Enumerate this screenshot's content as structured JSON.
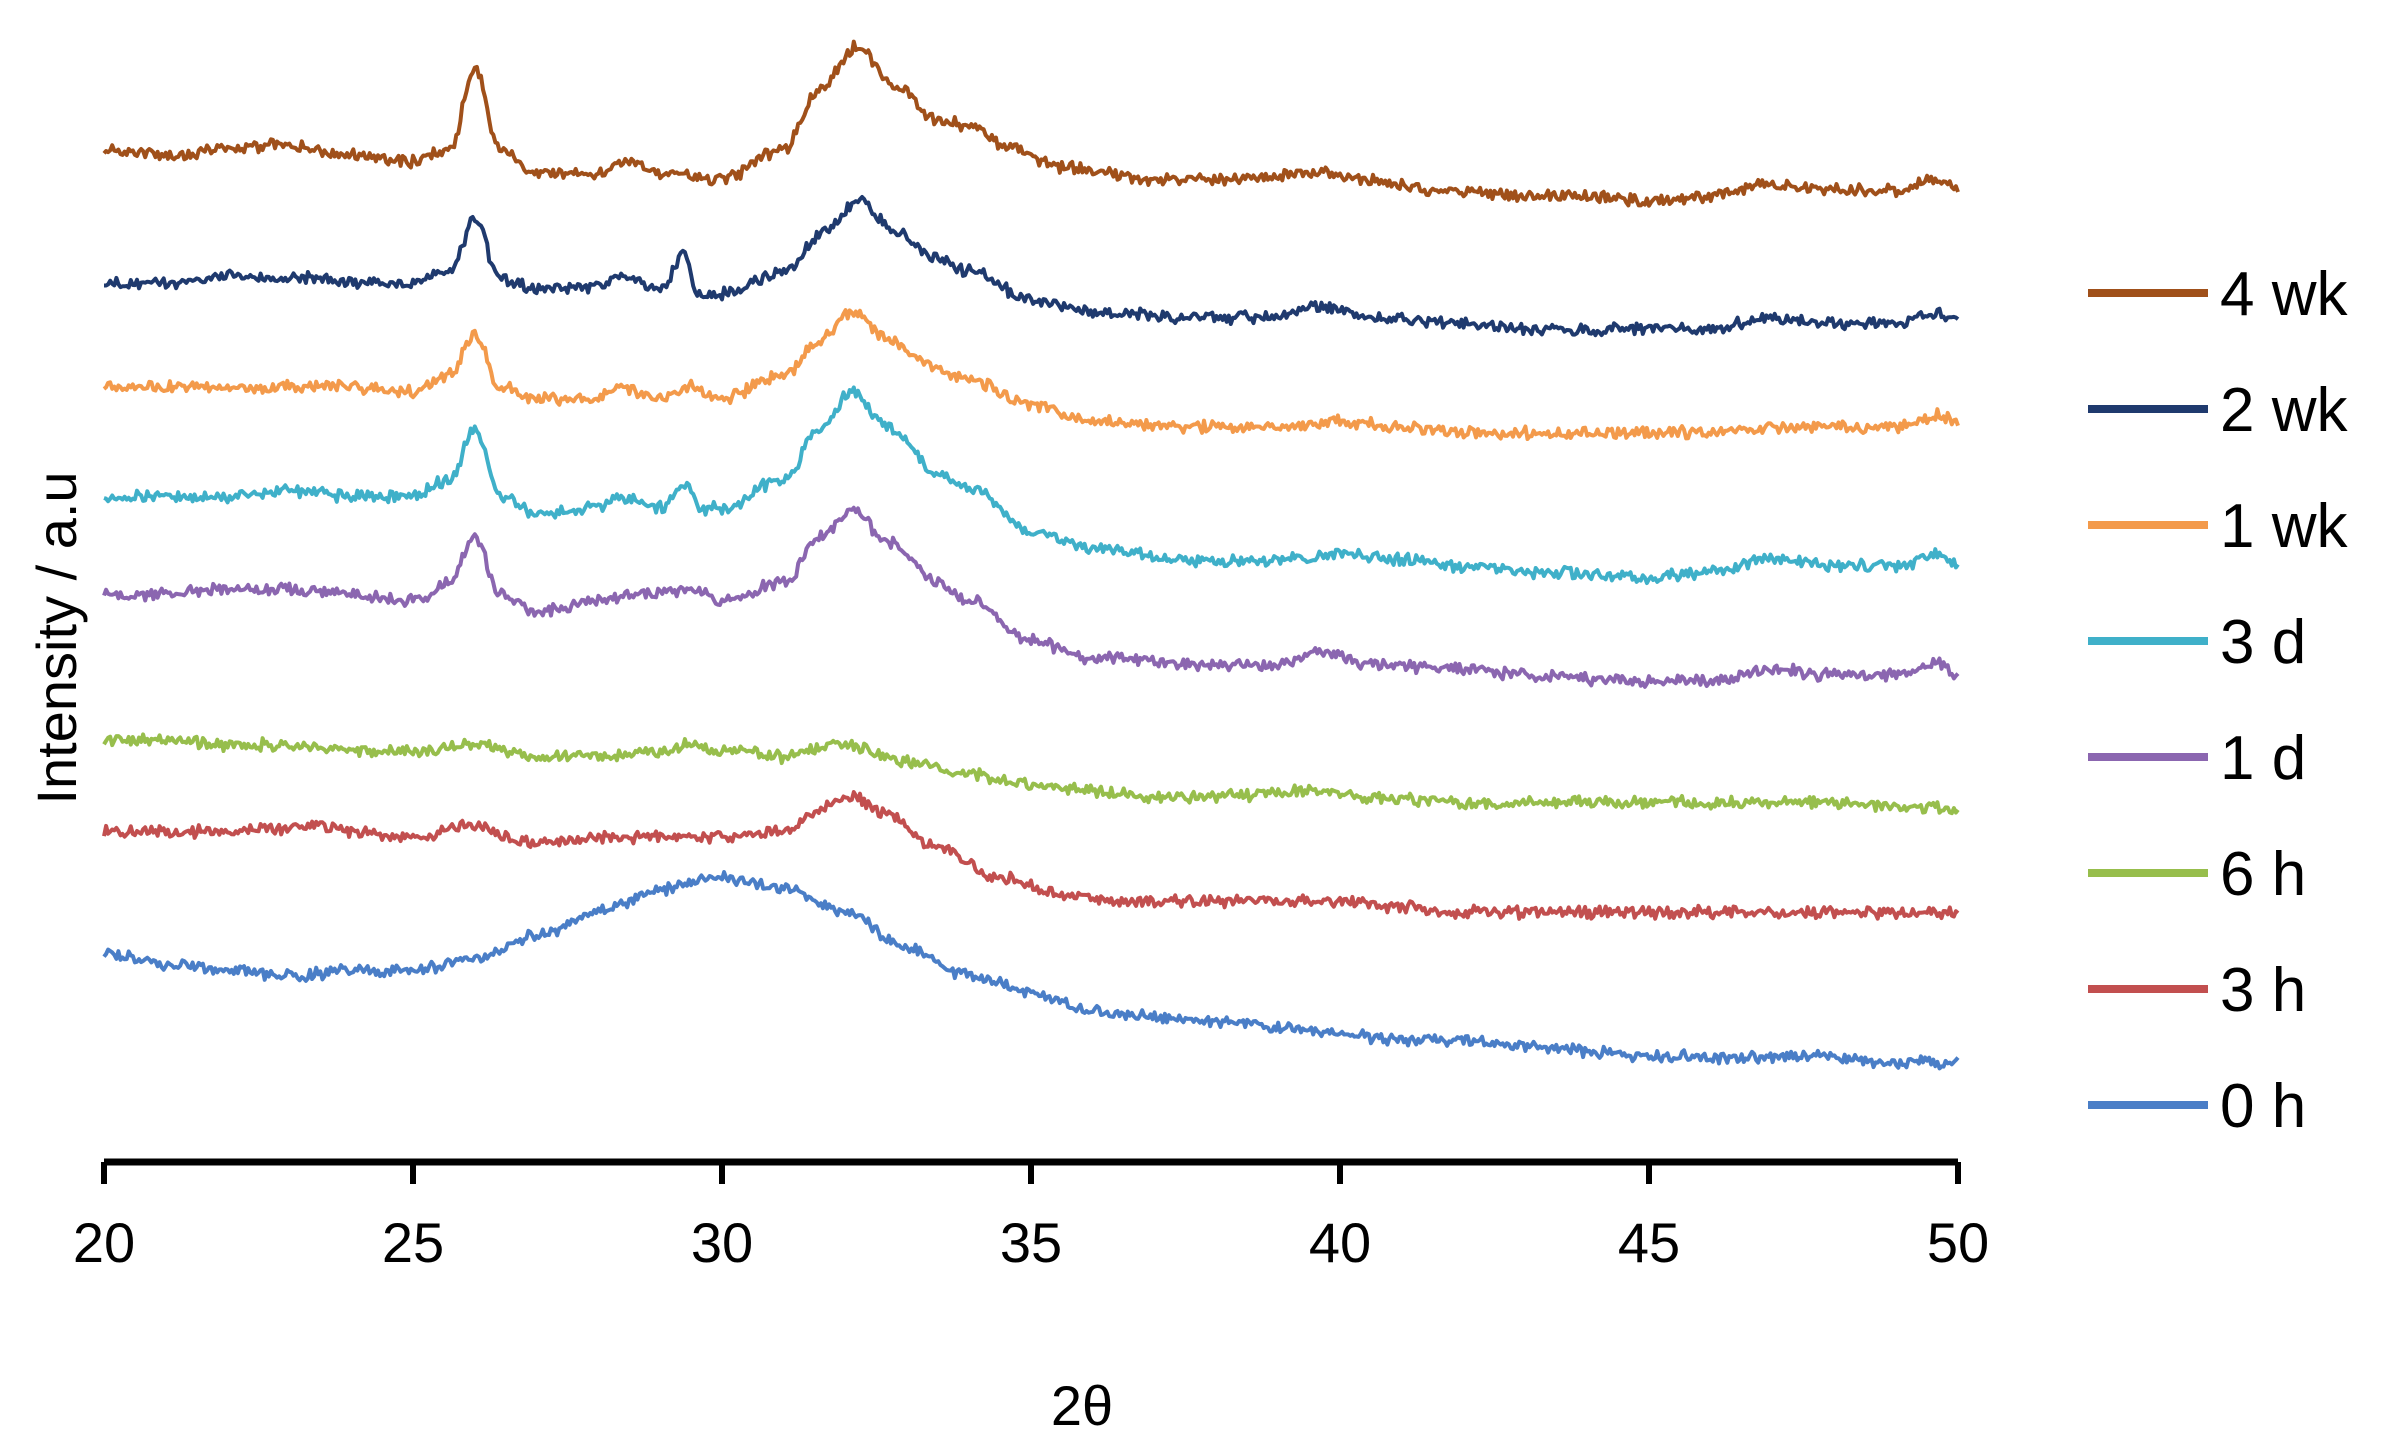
{
  "chart_data": {
    "type": "line",
    "title": "",
    "xlabel": "2θ",
    "ylabel": "Intensity / a.u",
    "xlim": [
      20,
      50
    ],
    "x_ticks": [
      20,
      25,
      30,
      35,
      40,
      45,
      50
    ],
    "y_ticks_shown": false,
    "grid": false,
    "legend_position": "right",
    "stacked_offset": true,
    "series": [
      {
        "name": "4 wk",
        "color": "#A0501A",
        "points": [
          [
            20,
            0.81
          ],
          [
            21,
            0.8
          ],
          [
            22,
            0.81
          ],
          [
            23,
            0.82
          ],
          [
            24,
            0.8
          ],
          [
            25,
            0.79
          ],
          [
            25.6,
            0.81
          ],
          [
            26.0,
            0.95
          ],
          [
            26.4,
            0.81
          ],
          [
            27,
            0.77
          ],
          [
            28,
            0.77
          ],
          [
            28.4,
            0.79
          ],
          [
            29,
            0.77
          ],
          [
            30,
            0.76
          ],
          [
            31,
            0.81
          ],
          [
            31.6,
            0.92
          ],
          [
            32.2,
            0.99
          ],
          [
            32.8,
            0.92
          ],
          [
            33.5,
            0.86
          ],
          [
            34.1,
            0.85
          ],
          [
            34.5,
            0.82
          ],
          [
            35.5,
            0.78
          ],
          [
            37,
            0.76
          ],
          [
            38.5,
            0.76
          ],
          [
            39.5,
            0.77
          ],
          [
            40.5,
            0.76
          ],
          [
            41.5,
            0.74
          ],
          [
            43,
            0.73
          ],
          [
            44,
            0.73
          ],
          [
            45,
            0.72
          ],
          [
            46,
            0.73
          ],
          [
            47,
            0.75
          ],
          [
            48,
            0.74
          ],
          [
            49,
            0.74
          ],
          [
            49.6,
            0.76
          ],
          [
            50,
            0.74
          ]
        ]
      },
      {
        "name": "2 wk",
        "color": "#1F3A6E",
        "points": [
          [
            20,
            0.58
          ],
          [
            21,
            0.58
          ],
          [
            22,
            0.59
          ],
          [
            23,
            0.59
          ],
          [
            24,
            0.58
          ],
          [
            25,
            0.58
          ],
          [
            25.6,
            0.6
          ],
          [
            26.0,
            0.69
          ],
          [
            26.4,
            0.59
          ],
          [
            27,
            0.57
          ],
          [
            28,
            0.57
          ],
          [
            28.3,
            0.59
          ],
          [
            29,
            0.57
          ],
          [
            29.4,
            0.63
          ],
          [
            29.6,
            0.56
          ],
          [
            30,
            0.56
          ],
          [
            31,
            0.6
          ],
          [
            31.7,
            0.67
          ],
          [
            32.2,
            0.72
          ],
          [
            32.8,
            0.67
          ],
          [
            33.5,
            0.62
          ],
          [
            34,
            0.6
          ],
          [
            35,
            0.55
          ],
          [
            36,
            0.53
          ],
          [
            37.5,
            0.52
          ],
          [
            39,
            0.52
          ],
          [
            39.6,
            0.54
          ],
          [
            40.5,
            0.52
          ],
          [
            42,
            0.51
          ],
          [
            43,
            0.5
          ],
          [
            45,
            0.5
          ],
          [
            46,
            0.5
          ],
          [
            47,
            0.52
          ],
          [
            48,
            0.51
          ],
          [
            49,
            0.51
          ],
          [
            49.7,
            0.53
          ],
          [
            50,
            0.51
          ]
        ]
      },
      {
        "name": "1 wk",
        "color": "#F39A4B",
        "points": [
          [
            20,
            0.4
          ],
          [
            21,
            0.4
          ],
          [
            22,
            0.4
          ],
          [
            23,
            0.4
          ],
          [
            24,
            0.4
          ],
          [
            25,
            0.39
          ],
          [
            25.6,
            0.42
          ],
          [
            26.0,
            0.49
          ],
          [
            26.4,
            0.4
          ],
          [
            27,
            0.38
          ],
          [
            28,
            0.38
          ],
          [
            28.3,
            0.4
          ],
          [
            29,
            0.38
          ],
          [
            29.5,
            0.4
          ],
          [
            30,
            0.38
          ],
          [
            31,
            0.42
          ],
          [
            31.6,
            0.48
          ],
          [
            32.1,
            0.53
          ],
          [
            32.7,
            0.48
          ],
          [
            33.5,
            0.43
          ],
          [
            34.0,
            0.41
          ],
          [
            35,
            0.37
          ],
          [
            36,
            0.34
          ],
          [
            37.5,
            0.33
          ],
          [
            39,
            0.33
          ],
          [
            40,
            0.34
          ],
          [
            41,
            0.33
          ],
          [
            42,
            0.32
          ],
          [
            43,
            0.32
          ],
          [
            45,
            0.32
          ],
          [
            46,
            0.32
          ],
          [
            47,
            0.33
          ],
          [
            48,
            0.33
          ],
          [
            49,
            0.33
          ],
          [
            49.7,
            0.35
          ],
          [
            50,
            0.34
          ]
        ]
      },
      {
        "name": "3 d",
        "color": "#3FB0C9",
        "points": [
          [
            20,
            0.21
          ],
          [
            21,
            0.21
          ],
          [
            22,
            0.21
          ],
          [
            23,
            0.22
          ],
          [
            24,
            0.21
          ],
          [
            25,
            0.21
          ],
          [
            25.6,
            0.24
          ],
          [
            26.0,
            0.33
          ],
          [
            26.4,
            0.21
          ],
          [
            27,
            0.18
          ],
          [
            28,
            0.19
          ],
          [
            28.3,
            0.21
          ],
          [
            29,
            0.19
          ],
          [
            29.4,
            0.23
          ],
          [
            29.7,
            0.19
          ],
          [
            30,
            0.19
          ],
          [
            31,
            0.24
          ],
          [
            31.6,
            0.33
          ],
          [
            32.1,
            0.39
          ],
          [
            32.7,
            0.33
          ],
          [
            33.5,
            0.25
          ],
          [
            34.1,
            0.22
          ],
          [
            35,
            0.15
          ],
          [
            36,
            0.12
          ],
          [
            37.5,
            0.1
          ],
          [
            39,
            0.1
          ],
          [
            40,
            0.11
          ],
          [
            41,
            0.1
          ],
          [
            42,
            0.09
          ],
          [
            43,
            0.08
          ],
          [
            45,
            0.07
          ],
          [
            46,
            0.08
          ],
          [
            47,
            0.1
          ],
          [
            48,
            0.09
          ],
          [
            49,
            0.09
          ],
          [
            49.7,
            0.11
          ],
          [
            50,
            0.09
          ]
        ]
      },
      {
        "name": "1 d",
        "color": "#8B66B0",
        "points": [
          [
            20,
            0.04
          ],
          [
            21,
            0.04
          ],
          [
            22,
            0.05
          ],
          [
            23,
            0.05
          ],
          [
            24,
            0.04
          ],
          [
            25,
            0.03
          ],
          [
            25.6,
            0.06
          ],
          [
            26.0,
            0.14
          ],
          [
            26.4,
            0.04
          ],
          [
            27,
            0.01
          ],
          [
            28,
            0.03
          ],
          [
            28.5,
            0.04
          ],
          [
            29,
            0.04
          ],
          [
            29.5,
            0.05
          ],
          [
            30,
            0.03
          ],
          [
            31,
            0.06
          ],
          [
            31.6,
            0.14
          ],
          [
            32.1,
            0.19
          ],
          [
            32.7,
            0.13
          ],
          [
            33.5,
            0.06
          ],
          [
            34.0,
            0.03
          ],
          [
            35,
            -0.04
          ],
          [
            36,
            -0.07
          ],
          [
            37.5,
            -0.08
          ],
          [
            39,
            -0.08
          ],
          [
            39.8,
            -0.06
          ],
          [
            40.5,
            -0.08
          ],
          [
            42,
            -0.09
          ],
          [
            43,
            -0.1
          ],
          [
            45,
            -0.11
          ],
          [
            46,
            -0.11
          ],
          [
            47,
            -0.09
          ],
          [
            48,
            -0.1
          ],
          [
            49,
            -0.1
          ],
          [
            49.7,
            -0.08
          ],
          [
            50,
            -0.1
          ]
        ]
      },
      {
        "name": "6 h",
        "color": "#97BE4C",
        "points": [
          [
            20,
            -0.21
          ],
          [
            21,
            -0.21
          ],
          [
            22,
            -0.22
          ],
          [
            23,
            -0.22
          ],
          [
            24,
            -0.23
          ],
          [
            25,
            -0.23
          ],
          [
            26,
            -0.22
          ],
          [
            27,
            -0.24
          ],
          [
            28,
            -0.24
          ],
          [
            29,
            -0.23
          ],
          [
            29.5,
            -0.22
          ],
          [
            30,
            -0.23
          ],
          [
            31,
            -0.24
          ],
          [
            32,
            -0.22
          ],
          [
            33,
            -0.25
          ],
          [
            34,
            -0.27
          ],
          [
            35,
            -0.29
          ],
          [
            36,
            -0.3
          ],
          [
            37,
            -0.31
          ],
          [
            38,
            -0.31
          ],
          [
            39.5,
            -0.3
          ],
          [
            40.5,
            -0.31
          ],
          [
            42,
            -0.32
          ],
          [
            44,
            -0.32
          ],
          [
            46,
            -0.32
          ],
          [
            48,
            -0.32
          ],
          [
            50,
            -0.33
          ]
        ]
      },
      {
        "name": "3 h",
        "color": "#C24F4F",
        "points": [
          [
            20,
            -0.37
          ],
          [
            21,
            -0.37
          ],
          [
            22,
            -0.37
          ],
          [
            23.5,
            -0.36
          ],
          [
            24,
            -0.37
          ],
          [
            25,
            -0.38
          ],
          [
            26.0,
            -0.36
          ],
          [
            26.5,
            -0.38
          ],
          [
            27,
            -0.39
          ],
          [
            28,
            -0.38
          ],
          [
            29,
            -0.38
          ],
          [
            30,
            -0.38
          ],
          [
            31,
            -0.37
          ],
          [
            31.6,
            -0.33
          ],
          [
            32.1,
            -0.31
          ],
          [
            32.7,
            -0.34
          ],
          [
            33.5,
            -0.4
          ],
          [
            34.5,
            -0.45
          ],
          [
            35.5,
            -0.48
          ],
          [
            36.5,
            -0.49
          ],
          [
            37.5,
            -0.49
          ],
          [
            39,
            -0.49
          ],
          [
            40,
            -0.49
          ],
          [
            41,
            -0.5
          ],
          [
            42,
            -0.51
          ],
          [
            44,
            -0.51
          ],
          [
            46,
            -0.51
          ],
          [
            48,
            -0.51
          ],
          [
            50,
            -0.51
          ]
        ]
      },
      {
        "name": "0 h",
        "color": "#4A7EC7",
        "points": [
          [
            20,
            -0.58
          ],
          [
            21,
            -0.6
          ],
          [
            22,
            -0.61
          ],
          [
            23,
            -0.62
          ],
          [
            24,
            -0.61
          ],
          [
            25,
            -0.61
          ],
          [
            26,
            -0.59
          ],
          [
            27,
            -0.55
          ],
          [
            28,
            -0.51
          ],
          [
            29,
            -0.47
          ],
          [
            30,
            -0.45
          ],
          [
            31,
            -0.47
          ],
          [
            32,
            -0.51
          ],
          [
            33,
            -0.57
          ],
          [
            34,
            -0.62
          ],
          [
            35,
            -0.65
          ],
          [
            36,
            -0.68
          ],
          [
            37,
            -0.69
          ],
          [
            38,
            -0.7
          ],
          [
            39,
            -0.71
          ],
          [
            40,
            -0.72
          ],
          [
            41,
            -0.73
          ],
          [
            42,
            -0.73
          ],
          [
            43,
            -0.74
          ],
          [
            44,
            -0.75
          ],
          [
            45,
            -0.76
          ],
          [
            46,
            -0.76
          ],
          [
            47,
            -0.76
          ],
          [
            48,
            -0.76
          ],
          [
            49,
            -0.77
          ],
          [
            50,
            -0.77
          ]
        ]
      }
    ]
  }
}
